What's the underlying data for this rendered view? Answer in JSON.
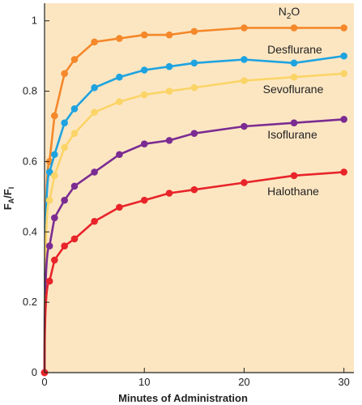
{
  "chart_data": {
    "type": "line",
    "xlabel": "Minutes of Administration",
    "ylabel_main": "F",
    "ylabel_sub1": "A",
    "ylabel_sep": "/F",
    "ylabel_sub2": "I",
    "xlim": [
      0,
      31
    ],
    "ylim": [
      0,
      1.05
    ],
    "xticks": [
      0,
      10,
      20,
      30
    ],
    "yticks": [
      0,
      0.2,
      0.4,
      0.6,
      0.8,
      1
    ],
    "ytick_labels": [
      "0",
      "0.2",
      "0.4",
      "0.6",
      "0.8",
      "1"
    ],
    "grid": false,
    "colors": {
      "background": "#fce6c2",
      "axis": "#222222"
    },
    "origin_color": "#e8242a",
    "series": [
      {
        "name_main": "N",
        "name_sub": "2",
        "name_rest": "O",
        "color": "#f4882a",
        "x": [
          0.5,
          1,
          2,
          3,
          5,
          7.5,
          10,
          12.5,
          15,
          20,
          25,
          30
        ],
        "y": [
          0.6,
          0.73,
          0.85,
          0.89,
          0.94,
          0.95,
          0.96,
          0.96,
          0.97,
          0.98,
          0.98,
          0.98
        ]
      },
      {
        "name_main": "Desflurane",
        "color": "#1ea3e0",
        "x": [
          0.5,
          1,
          2,
          3,
          5,
          7.5,
          10,
          12.5,
          15,
          20,
          25,
          30
        ],
        "y": [
          0.57,
          0.62,
          0.71,
          0.75,
          0.81,
          0.84,
          0.86,
          0.87,
          0.88,
          0.89,
          0.88,
          0.9
        ]
      },
      {
        "name_main": "Sevoflurane",
        "color": "#fbd467",
        "x": [
          0.5,
          1,
          2,
          3,
          5,
          7.5,
          10,
          12.5,
          15,
          20,
          25,
          30
        ],
        "y": [
          0.49,
          0.56,
          0.64,
          0.68,
          0.74,
          0.77,
          0.79,
          0.8,
          0.81,
          0.83,
          0.84,
          0.85
        ]
      },
      {
        "name_main": "Isoflurane",
        "color": "#7b2c92",
        "x": [
          0.5,
          1,
          2,
          3,
          5,
          7.5,
          10,
          12.5,
          15,
          20,
          25,
          30
        ],
        "y": [
          0.36,
          0.44,
          0.49,
          0.53,
          0.57,
          0.62,
          0.65,
          0.66,
          0.68,
          0.7,
          0.71,
          0.72
        ]
      },
      {
        "name_main": "Halothane",
        "color": "#e8242a",
        "x": [
          0.5,
          1,
          2,
          3,
          5,
          7.5,
          10,
          12.5,
          15,
          20,
          25,
          30
        ],
        "y": [
          0.26,
          0.32,
          0.36,
          0.38,
          0.43,
          0.47,
          0.49,
          0.51,
          0.52,
          0.54,
          0.56,
          0.57
        ]
      }
    ]
  }
}
